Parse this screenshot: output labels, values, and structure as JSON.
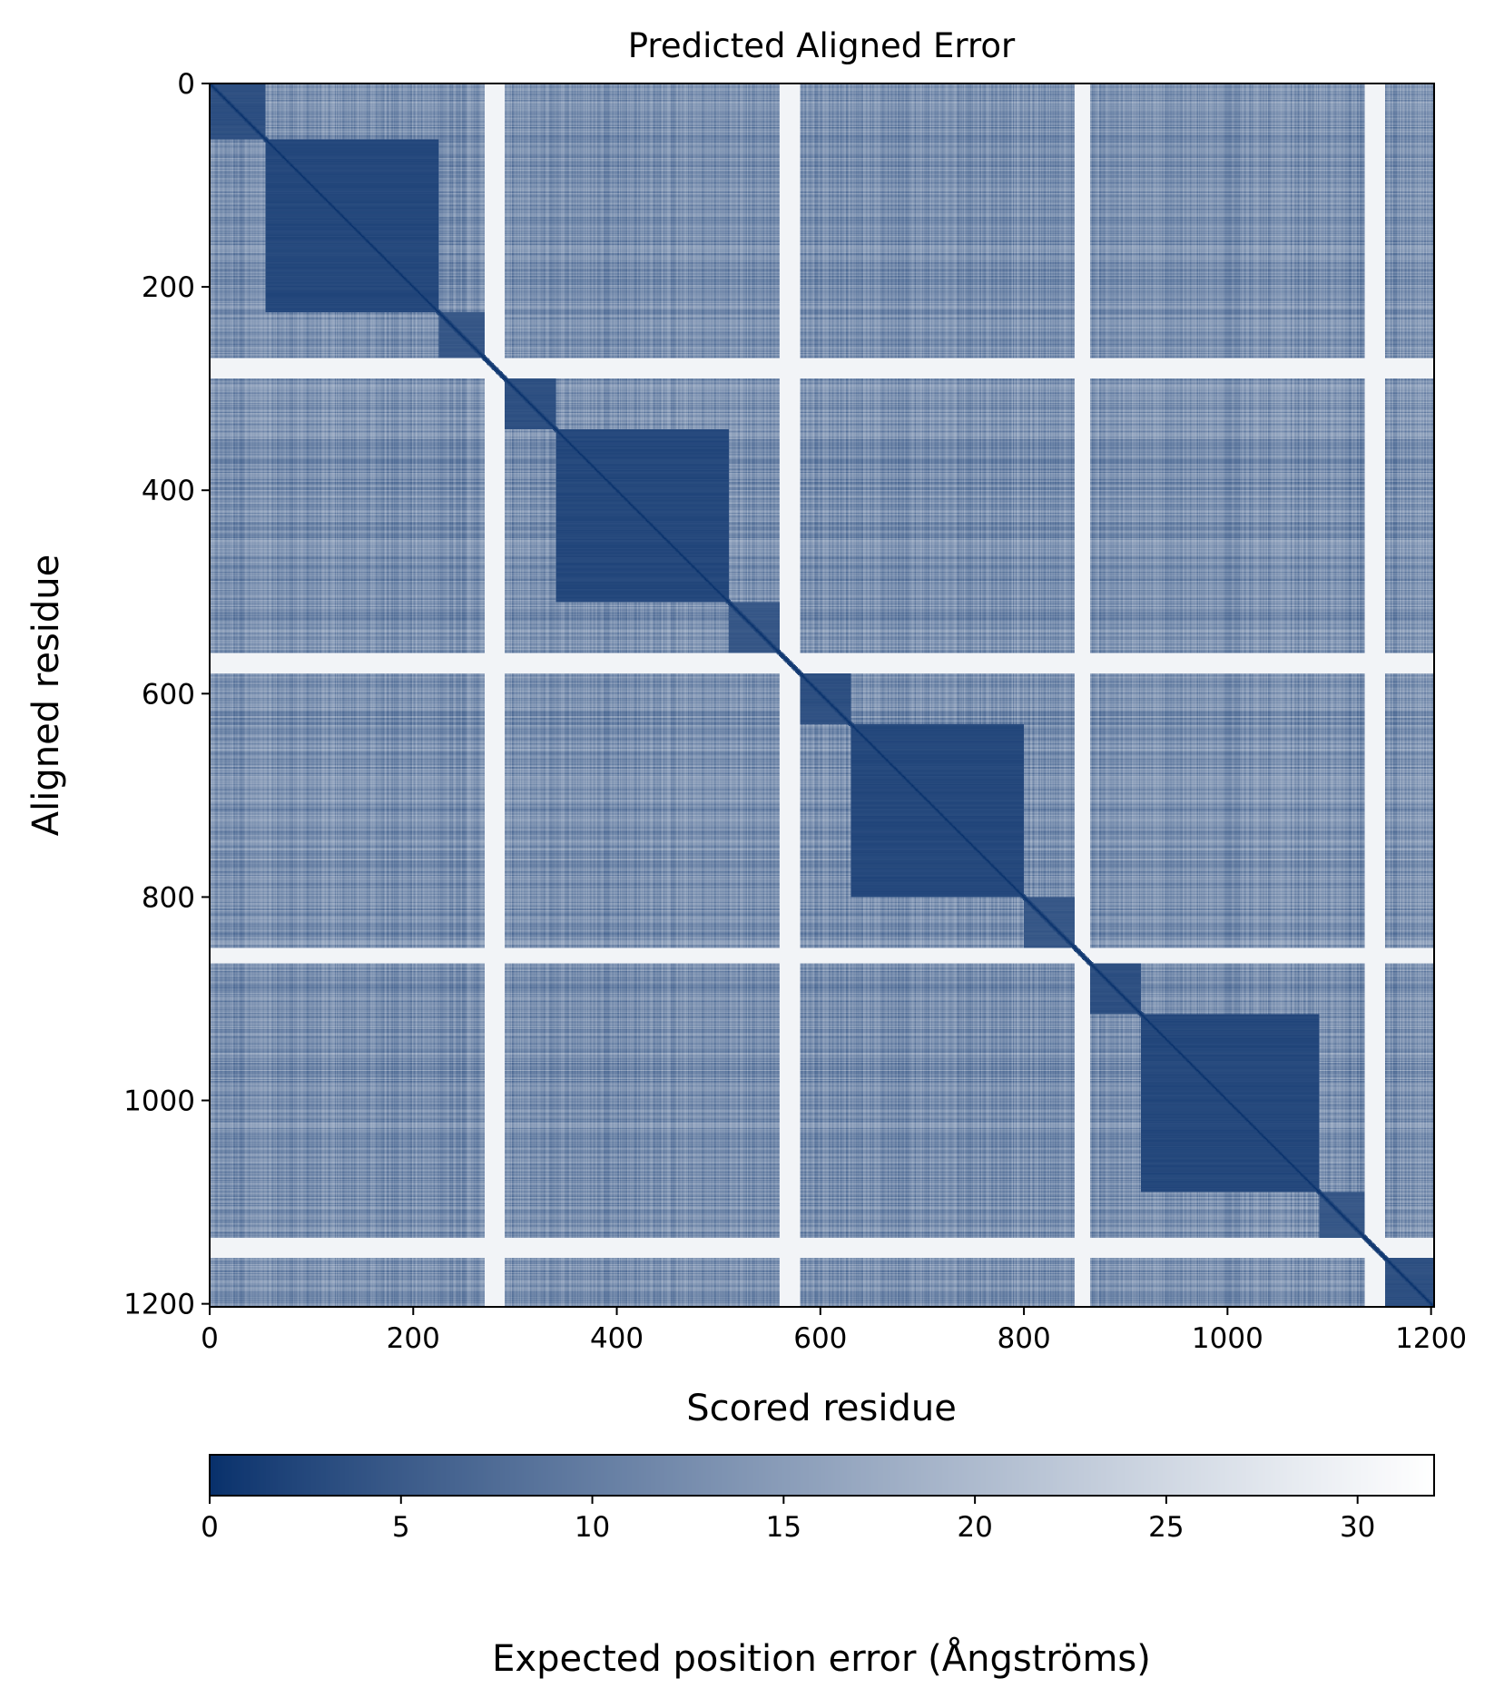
{
  "chart_data": {
    "type": "heatmap",
    "title": "Predicted Aligned Error",
    "xlabel": "Scored residue",
    "ylabel": "Aligned residue",
    "n_residues": 1203,
    "xlim": [
      0,
      1203
    ],
    "ylim": [
      1203,
      0
    ],
    "x_ticks": [
      0,
      200,
      400,
      600,
      800,
      1000,
      1200
    ],
    "y_ticks": [
      0,
      200,
      400,
      600,
      800,
      1000,
      1200
    ],
    "colormap": "Blues_r",
    "colormap_low": "#08306b",
    "colormap_high": "#ffffff",
    "colorbar": {
      "label": "Expected position error (Ångströms)",
      "range": [
        0,
        32
      ],
      "ticks": [
        0,
        5,
        10,
        15,
        20,
        25,
        30
      ]
    },
    "domains": [
      {
        "start": 0,
        "end": 55,
        "intra_error": 3
      },
      {
        "start": 55,
        "end": 225,
        "intra_error": 2
      },
      {
        "start": 225,
        "end": 270,
        "intra_error": 4
      },
      {
        "start": 270,
        "end": 290,
        "intra_error": 30
      },
      {
        "start": 290,
        "end": 340,
        "intra_error": 3
      },
      {
        "start": 340,
        "end": 510,
        "intra_error": 2
      },
      {
        "start": 510,
        "end": 560,
        "intra_error": 4
      },
      {
        "start": 560,
        "end": 580,
        "intra_error": 30
      },
      {
        "start": 580,
        "end": 630,
        "intra_error": 3
      },
      {
        "start": 630,
        "end": 800,
        "intra_error": 2
      },
      {
        "start": 800,
        "end": 850,
        "intra_error": 4
      },
      {
        "start": 850,
        "end": 865,
        "intra_error": 30
      },
      {
        "start": 865,
        "end": 915,
        "intra_error": 3
      },
      {
        "start": 915,
        "end": 1090,
        "intra_error": 2
      },
      {
        "start": 1090,
        "end": 1135,
        "intra_error": 4
      },
      {
        "start": 1135,
        "end": 1155,
        "intra_error": 30
      },
      {
        "start": 1155,
        "end": 1203,
        "intra_error": 3
      }
    ],
    "inter_domain_error": 13,
    "diagonal_error": 0
  }
}
